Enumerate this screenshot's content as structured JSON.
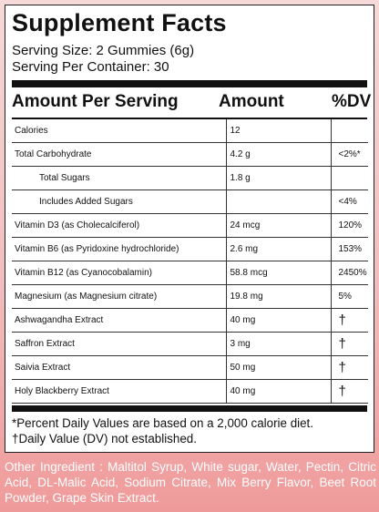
{
  "title": "Supplement Facts",
  "serving_size": "Serving Size: 2 Gummies (6g)",
  "servings_per_container": "Serving Per Container: 30",
  "headers": {
    "amount_per_serving": "Amount Per Serving",
    "amount": "Amount",
    "dv": "%DV"
  },
  "rows": [
    {
      "name": "Calories",
      "amount": "12",
      "dv": ""
    },
    {
      "name": "Total Carbohydrate",
      "amount": "4.2 g",
      "dv": "<2%*"
    },
    {
      "name": "Total Sugars",
      "amount": "1.8 g",
      "dv": ""
    },
    {
      "name": "Includes Added Sugars",
      "amount": "",
      "dv": "<4%"
    },
    {
      "name": "Vitamin D3 (as Cholecalciferol)",
      "amount": "24 mcg",
      "dv": "120%"
    },
    {
      "name": "Vitamin B6 (as Pyridoxine hydrochloride)",
      "amount": "2.6 mg",
      "dv": "153%"
    },
    {
      "name": "Vitamin B12 (as Cyanocobalamin)",
      "amount": "58.8 mcg",
      "dv": "2450%"
    },
    {
      "name": "Magnesium (as Magnesium citrate)",
      "amount": "19.8 mg",
      "dv": "5%"
    },
    {
      "name": "Ashwagandha Extract",
      "amount": "40 mg",
      "dv": "†"
    },
    {
      "name": "Saffron Extract",
      "amount": "3 mg",
      "dv": "†"
    },
    {
      "name": "Saivia Extract",
      "amount": "50 mg",
      "dv": "†"
    },
    {
      "name": "Holy Blackberry Extract",
      "amount": "40 mg",
      "dv": "†"
    }
  ],
  "footnotes": {
    "percent_dv": "*Percent Daily Values are based on a 2,000 calorie diet.",
    "dagger": "†Daily Value (DV) not established."
  },
  "other_ingredients": "Other Ingredient : Maltitol Syrup, White sugar, Water, Pectin, Citric Acid, DL-Malic Acid, Sodium Citrate, Mix Berry Flavor, Beet Root Powder, Grape Skin Extract."
}
